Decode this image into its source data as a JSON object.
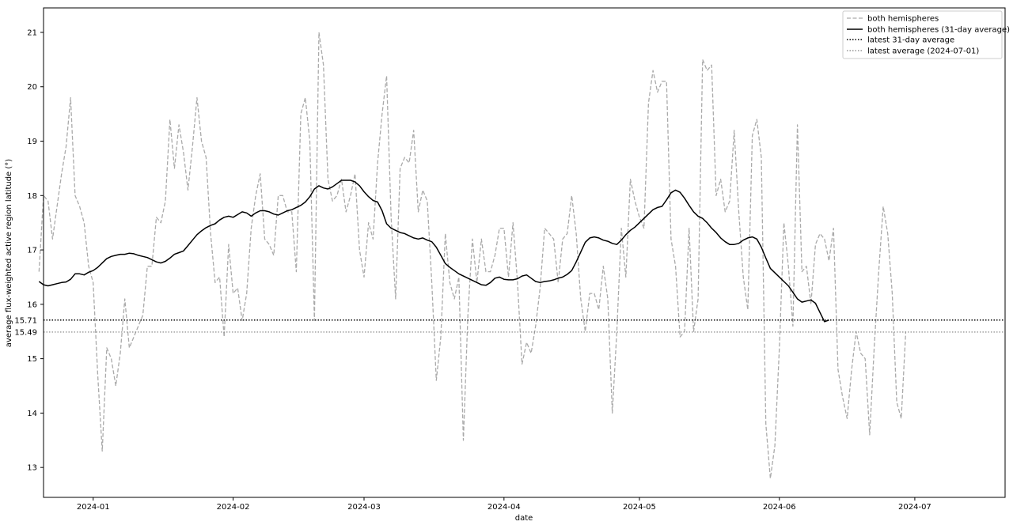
{
  "chart_data": {
    "type": "line",
    "xlabel": "date",
    "ylabel": "average flux-weighted active region latitude (°)",
    "x_ticks": [
      "2024-01",
      "2024-02",
      "2024-03",
      "2024-04",
      "2024-05",
      "2024-06",
      "2024-07"
    ],
    "y_ticks": [
      "13",
      "14",
      "15",
      "16",
      "17",
      "18",
      "19",
      "20",
      "21"
    ],
    "xlim": [
      "2023-12-21",
      "2024-07-21"
    ],
    "ylim": [
      12.45,
      21.45
    ],
    "grid": false,
    "legend_position": "top-right",
    "colors": {
      "raw": "#aaaaaa",
      "avg": "#000000",
      "latest31": "#000000",
      "latestAvg": "#808080"
    },
    "series": [
      {
        "name": "both hemispheres",
        "style": "dashed",
        "x_start": "2023-12-20",
        "values": [
          16.6,
          18.0,
          17.9,
          17.2,
          17.8,
          18.4,
          18.9,
          19.8,
          18.0,
          17.8,
          17.5,
          16.7,
          16.4,
          14.7,
          13.3,
          15.2,
          15.0,
          14.5,
          15.1,
          16.1,
          15.2,
          15.4,
          15.6,
          15.8,
          16.7,
          16.7,
          17.6,
          17.5,
          17.9,
          19.4,
          18.5,
          19.3,
          18.8,
          18.1,
          18.9,
          19.8,
          19.0,
          18.7,
          17.3,
          16.4,
          16.5,
          15.4,
          17.1,
          16.2,
          16.3,
          15.7,
          16.2,
          17.4,
          18.0,
          18.4,
          17.2,
          17.1,
          16.9,
          18.0,
          18.0,
          17.7,
          17.7,
          16.6,
          19.5,
          19.8,
          19.0,
          15.7,
          21.0,
          20.4,
          18.3,
          17.9,
          18.0,
          18.3,
          17.7,
          18.0,
          18.4,
          17.0,
          16.5,
          17.5,
          17.2,
          18.6,
          19.5,
          20.2,
          17.6,
          16.1,
          18.5,
          18.7,
          18.6,
          19.2,
          17.7,
          18.1,
          17.9,
          16.4,
          14.6,
          15.4,
          17.3,
          16.4,
          16.1,
          16.5,
          13.5,
          15.8,
          17.2,
          16.4,
          17.2,
          16.6,
          16.6,
          16.9,
          17.4,
          17.4,
          16.5,
          17.5,
          16.4,
          14.9,
          15.3,
          15.1,
          15.6,
          16.3,
          17.4,
          17.3,
          17.2,
          16.4,
          17.2,
          17.3,
          18.0,
          17.3,
          16.1,
          15.5,
          16.2,
          16.2,
          15.9,
          16.7,
          16.1,
          14.0,
          15.5,
          17.4,
          16.5,
          18.3,
          17.9,
          17.6,
          17.4,
          19.7,
          20.3,
          19.9,
          20.1,
          20.1,
          17.2,
          16.7,
          15.4,
          15.5,
          17.4,
          15.5,
          16.1,
          20.5,
          20.3,
          20.4,
          18.0,
          18.3,
          17.7,
          17.9,
          19.2,
          17.7,
          16.5,
          15.9,
          19.1,
          19.4,
          18.7,
          13.8,
          12.8,
          13.4,
          15.2,
          17.5,
          16.7,
          15.6,
          19.3,
          16.6,
          16.7,
          16.0,
          17.1,
          17.3,
          17.2,
          16.8,
          17.4,
          14.8,
          14.3,
          13.9,
          14.8,
          15.5,
          15.1,
          15.0,
          13.6,
          15.2,
          16.6,
          17.8,
          17.3,
          16.2,
          14.2,
          13.9,
          15.5
        ]
      },
      {
        "name": "both hemispheres (31-day average)",
        "style": "solid",
        "x_start": "2023-12-20",
        "values": [
          16.42,
          16.36,
          16.34,
          16.36,
          16.38,
          16.4,
          16.41,
          16.46,
          16.56,
          16.56,
          16.54,
          16.59,
          16.62,
          16.68,
          16.76,
          16.84,
          16.88,
          16.9,
          16.92,
          16.92,
          16.94,
          16.93,
          16.9,
          16.88,
          16.86,
          16.82,
          16.78,
          16.76,
          16.79,
          16.85,
          16.92,
          16.95,
          16.98,
          17.08,
          17.18,
          17.28,
          17.35,
          17.41,
          17.45,
          17.48,
          17.55,
          17.6,
          17.62,
          17.6,
          17.65,
          17.7,
          17.68,
          17.62,
          17.68,
          17.72,
          17.72,
          17.7,
          17.66,
          17.64,
          17.68,
          17.72,
          17.74,
          17.78,
          17.82,
          17.88,
          17.98,
          18.12,
          18.18,
          18.14,
          18.12,
          18.16,
          18.22,
          18.28,
          18.28,
          18.28,
          18.25,
          18.18,
          18.07,
          17.98,
          17.91,
          17.88,
          17.72,
          17.48,
          17.4,
          17.36,
          17.32,
          17.3,
          17.26,
          17.22,
          17.2,
          17.22,
          17.18,
          17.15,
          17.05,
          16.9,
          16.75,
          16.68,
          16.62,
          16.56,
          16.52,
          16.48,
          16.44,
          16.4,
          16.36,
          16.35,
          16.4,
          16.48,
          16.5,
          16.46,
          16.45,
          16.45,
          16.47,
          16.52,
          16.54,
          16.48,
          16.42,
          16.4,
          16.42,
          16.43,
          16.45,
          16.48,
          16.5,
          16.55,
          16.62,
          16.78,
          16.96,
          17.14,
          17.22,
          17.24,
          17.22,
          17.18,
          17.16,
          17.12,
          17.1,
          17.18,
          17.28,
          17.36,
          17.42,
          17.5,
          17.58,
          17.66,
          17.74,
          17.78,
          17.8,
          17.92,
          18.05,
          18.1,
          18.06,
          17.95,
          17.82,
          17.7,
          17.62,
          17.58,
          17.5,
          17.4,
          17.32,
          17.22,
          17.15,
          17.1,
          17.1,
          17.12,
          17.18,
          17.22,
          17.24,
          17.2,
          17.05,
          16.85,
          16.66,
          16.58,
          16.5,
          16.42,
          16.34,
          16.22,
          16.1,
          16.04,
          16.06,
          16.08,
          16.02,
          15.85,
          15.68,
          15.71
        ]
      }
    ],
    "hlines": [
      {
        "name": "latest 31-day average",
        "value": 15.71,
        "label": "15.71",
        "style": "dotted"
      },
      {
        "name": "latest average (2024-07-01)",
        "value": 15.49,
        "label": "15.49",
        "style": "dotted"
      }
    ]
  }
}
